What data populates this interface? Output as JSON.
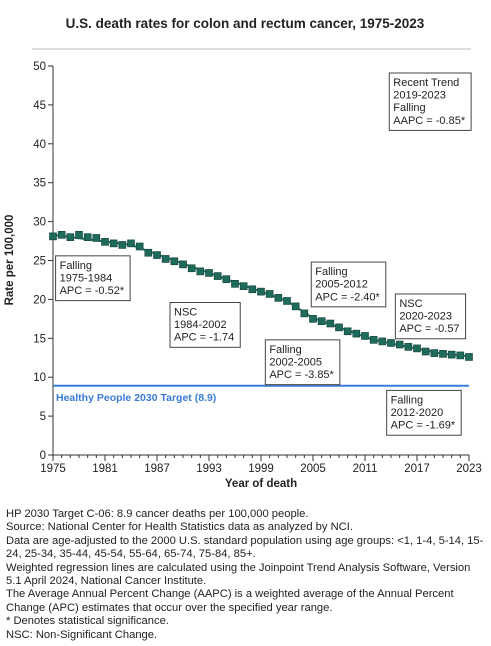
{
  "chart_data": {
    "type": "scatter",
    "title": "U.S. death rates for colon and rectum cancer, 1975-2023",
    "xlabel": "Year of death",
    "ylabel": "Rate per 100,000",
    "xlim": [
      1975,
      2023
    ],
    "ylim": [
      0,
      50
    ],
    "xticks": [
      1975,
      1981,
      1987,
      1993,
      1999,
      2005,
      2011,
      2017,
      2023
    ],
    "yticks": [
      0,
      5,
      10,
      15,
      20,
      25,
      30,
      35,
      40,
      45,
      50
    ],
    "grid": false,
    "marker_color": "#1f6b5b",
    "trend_color": "#2b7a6a",
    "points": {
      "x": [
        1975,
        1976,
        1977,
        1978,
        1979,
        1980,
        1981,
        1982,
        1983,
        1984,
        1985,
        1986,
        1987,
        1988,
        1989,
        1990,
        1991,
        1992,
        1993,
        1994,
        1995,
        1996,
        1997,
        1998,
        1999,
        2000,
        2001,
        2002,
        2003,
        2004,
        2005,
        2006,
        2007,
        2008,
        2009,
        2010,
        2011,
        2012,
        2013,
        2014,
        2015,
        2016,
        2017,
        2018,
        2019,
        2020,
        2021,
        2022,
        2023
      ],
      "y": [
        28.1,
        28.3,
        28.0,
        28.3,
        28.0,
        27.9,
        27.4,
        27.2,
        27.0,
        27.2,
        26.8,
        26.0,
        25.7,
        25.2,
        24.9,
        24.5,
        24.0,
        23.6,
        23.4,
        23.0,
        22.6,
        22.0,
        21.7,
        21.3,
        21.0,
        20.7,
        20.2,
        19.8,
        19.1,
        18.2,
        17.5,
        17.2,
        16.9,
        16.4,
        15.9,
        15.6,
        15.3,
        14.8,
        14.6,
        14.4,
        14.2,
        13.9,
        13.7,
        13.3,
        13.1,
        13.0,
        12.9,
        12.8,
        12.6
      ]
    },
    "trend_segments": [
      {
        "from": 1975,
        "to": 1984,
        "y_start": 28.3,
        "y_end": 27.0
      },
      {
        "from": 1984,
        "to": 2002,
        "y_start": 27.0,
        "y_end": 19.8
      },
      {
        "from": 2002,
        "to": 2005,
        "y_start": 19.8,
        "y_end": 17.6
      },
      {
        "from": 2005,
        "to": 2012,
        "y_start": 17.6,
        "y_end": 14.8
      },
      {
        "from": 2012,
        "to": 2020,
        "y_start": 14.8,
        "y_end": 13.0
      },
      {
        "from": 2020,
        "to": 2023,
        "y_start": 13.0,
        "y_end": 12.7
      }
    ],
    "target": {
      "value": 8.9,
      "label": "Healthy People 2030 Target (8.9)",
      "color": "#3a7bd5"
    },
    "annotations": [
      {
        "anchor_x": 1975.3,
        "anchor_y": 25.6,
        "lines": [
          "Falling",
          "1975-1984",
          "APC = -0.52*"
        ]
      },
      {
        "anchor_x": 1988.5,
        "anchor_y": 19.6,
        "lines": [
          "NSC",
          "1984-2002",
          "APC = -1.74"
        ]
      },
      {
        "anchor_x": 1999.5,
        "anchor_y": 14.8,
        "lines": [
          "Falling",
          "2002-2005",
          "APC = -3.85*"
        ]
      },
      {
        "anchor_x": 2004.8,
        "anchor_y": 24.8,
        "lines": [
          "Falling",
          "2005-2012",
          "APC = -2.40*"
        ]
      },
      {
        "anchor_x": 2014.5,
        "anchor_y": 20.7,
        "lines": [
          "NSC",
          "2020-2023",
          "APC = -0.57"
        ]
      },
      {
        "anchor_x": 2013.5,
        "anchor_y": 8.3,
        "lines": [
          "Falling",
          "2012-2020",
          "APC = -1.69*"
        ]
      },
      {
        "anchor_x": 2013.8,
        "anchor_y": 49.1,
        "lines": [
          "Recent Trend",
          "2019-2023",
          "Falling",
          "AAPC = -0.85*"
        ]
      }
    ]
  },
  "footnotes": [
    "HP 2030 Target C-06: 8.9 cancer deaths per 100,000 people.",
    "Source: National Center for Health Statistics data as analyzed by NCI.",
    "Data are age-adjusted to the 2000 U.S. standard population using age groups: <1, 1-4, 5-14, 15-24, 25-34, 35-44, 45-54, 55-64, 65-74, 75-84, 85+.",
    "Weighted regression lines are calculated using the Joinpoint Trend Analysis Software, Version 5.1 April 2024, National Cancer Institute.",
    "The Average Annual Percent Change (AAPC) is a weighted average of the Annual Percent Change (APC) estimates that occur over the specified year range.",
    "* Denotes statistical significance.",
    "NSC: Non-Significant Change."
  ]
}
